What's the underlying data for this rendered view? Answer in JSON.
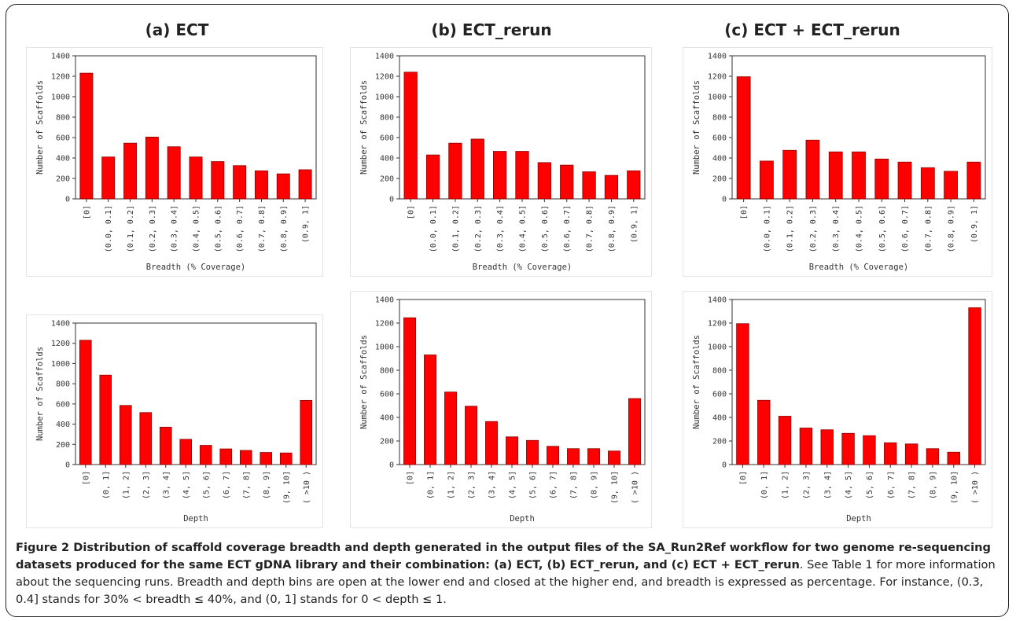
{
  "column_titles": [
    "(a) ECT",
    "(b) ECT_rerun",
    "(c) ECT + ECT_rerun"
  ],
  "caption": {
    "bold_text": "Figure 2 Distribution of scaffold coverage breadth and depth generated in the output files of the SA_Run2Ref workflow for two genome re-sequencing datasets produced for the same ECT gDNA library and their combination: (a) ECT, (b) ECT_rerun, and (c) ECT + ECT_rerun",
    "normal_text": ". See Table 1 for more information about the sequencing runs. Breadth and depth bins are open at the lower end and closed at the higher end, and breadth is expressed as percentage. For instance, (0.3, 0.4] stands for 30% < breadth ≤ 40%, and (0, 1] stands for 0 < depth ≤ 1."
  },
  "colors": {
    "bar": "#ff0000",
    "bar_edge": "#8b0000",
    "axis": "#333333"
  },
  "chart_data": [
    {
      "type": "bar",
      "panel": "(a) ECT",
      "xlabel": "Breadth (% Coverage)",
      "ylabel": "Number of Scaffolds",
      "ylim": [
        0,
        1400
      ],
      "yticks": [
        0,
        200,
        400,
        600,
        800,
        1000,
        1200,
        1400
      ],
      "categories": [
        "[0]",
        "(0.0, 0.1]",
        "(0.1, 0.2]",
        "(0.2, 0.3]",
        "(0.3, 0.4]",
        "(0.4, 0.5]",
        "(0.5, 0.6]",
        "(0.6, 0.7]",
        "(0.7, 0.8]",
        "(0.8, 0.9]",
        "(0.9, 1]"
      ],
      "values": [
        1230,
        410,
        545,
        605,
        510,
        410,
        365,
        325,
        275,
        245,
        285
      ],
      "grid": false
    },
    {
      "type": "bar",
      "panel": "(b) ECT_rerun",
      "xlabel": "Breadth (% Coverage)",
      "ylabel": "Number of Scaffolds",
      "ylim": [
        0,
        1400
      ],
      "yticks": [
        0,
        200,
        400,
        600,
        800,
        1000,
        1200,
        1400
      ],
      "categories": [
        "[0]",
        "(0.0, 0.1]",
        "(0.1, 0.2]",
        "(0.2, 0.3]",
        "(0.3, 0.4]",
        "(0.4, 0.5]",
        "(0.5, 0.6]",
        "(0.6, 0.7]",
        "(0.7, 0.8]",
        "(0.8, 0.9]",
        "(0.9, 1]"
      ],
      "values": [
        1240,
        430,
        545,
        585,
        465,
        465,
        355,
        330,
        265,
        230,
        275
      ],
      "grid": false
    },
    {
      "type": "bar",
      "panel": "(c) ECT + ECT_rerun",
      "xlabel": "Breadth (% Coverage)",
      "ylabel": "Number of Scaffolds",
      "ylim": [
        0,
        1400
      ],
      "yticks": [
        0,
        200,
        400,
        600,
        800,
        1000,
        1200,
        1400
      ],
      "categories": [
        "[0]",
        "(0.0, 0.1]",
        "(0.1, 0.2]",
        "(0.2, 0.3]",
        "(0.3, 0.4]",
        "(0.4, 0.5]",
        "(0.5, 0.6]",
        "(0.6, 0.7]",
        "(0.7, 0.8]",
        "(0.8, 0.9]",
        "(0.9, 1]"
      ],
      "values": [
        1195,
        370,
        475,
        575,
        460,
        460,
        390,
        360,
        305,
        270,
        360
      ],
      "grid": false
    },
    {
      "type": "bar",
      "panel": "(a) ECT",
      "xlabel": "Depth",
      "ylabel": "Number of Scaffolds",
      "ylim": [
        0,
        1400
      ],
      "yticks": [
        0,
        200,
        400,
        600,
        800,
        1000,
        1200,
        1400
      ],
      "categories": [
        "[0]",
        "(0, 1]",
        "(1, 2]",
        "(2, 3]",
        "(3, 4]",
        "(4, 5]",
        "(5, 6]",
        "(6, 7]",
        "(7, 8]",
        "(8, 9]",
        "(9, 10]",
        "( >10 )"
      ],
      "values": [
        1230,
        885,
        585,
        515,
        370,
        250,
        190,
        155,
        140,
        120,
        115,
        635
      ],
      "grid": false
    },
    {
      "type": "bar",
      "panel": "(b) ECT_rerun",
      "xlabel": "Depth",
      "ylabel": "Number of Scaffolds",
      "ylim": [
        0,
        1400
      ],
      "yticks": [
        0,
        200,
        400,
        600,
        800,
        1000,
        1200,
        1400
      ],
      "categories": [
        "[0]",
        "(0, 1]",
        "(1, 2]",
        "(2, 3]",
        "(3, 4]",
        "(4, 5]",
        "(5, 6]",
        "(6, 7]",
        "(7, 8]",
        "(8, 9]",
        "(9, 10]",
        "( >10 )"
      ],
      "values": [
        1245,
        930,
        615,
        495,
        365,
        235,
        205,
        155,
        135,
        135,
        115,
        560
      ],
      "grid": false
    },
    {
      "type": "bar",
      "panel": "(c) ECT + ECT_rerun",
      "xlabel": "Depth",
      "ylabel": "Number of Scaffolds",
      "ylim": [
        0,
        1400
      ],
      "yticks": [
        0,
        200,
        400,
        600,
        800,
        1000,
        1200,
        1400
      ],
      "categories": [
        "[0]",
        "(0, 1]",
        "(1, 2]",
        "(2, 3]",
        "(3, 4]",
        "(4, 5]",
        "(5, 6]",
        "(6, 7]",
        "(7, 8]",
        "(8, 9]",
        "(9, 10]",
        "( >10 )"
      ],
      "values": [
        1195,
        545,
        410,
        310,
        295,
        265,
        245,
        185,
        175,
        135,
        105,
        1330
      ],
      "grid": false
    }
  ]
}
